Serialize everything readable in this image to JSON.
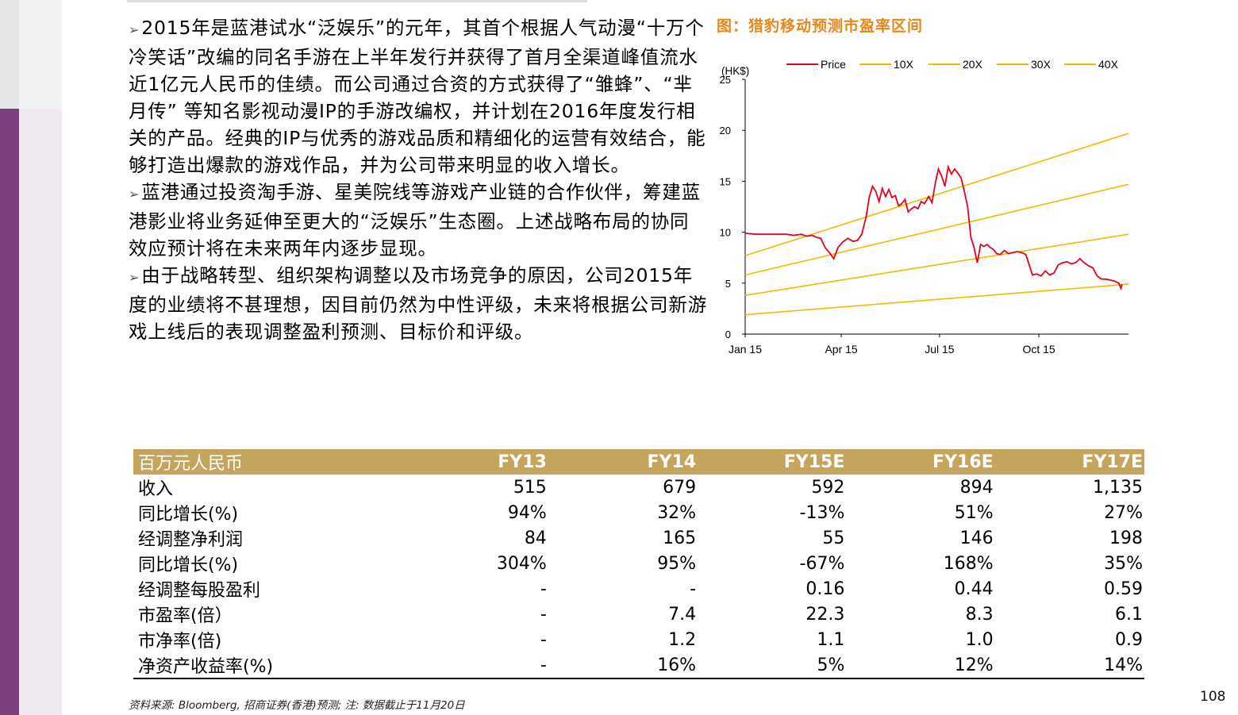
{
  "body": {
    "paragraphs": [
      "2015年是蓝港试水“泛娱乐”的元年，其首个根据人气动漫“十万个冷笑话”改编的同名手游在上半年发行并获得了首月全渠道峰值流水近1亿元人民币的佳绩。而公司通过合资的方式获得了“雏蜂”、“芈月传” 等知名影视动漫IP的手游改编权，并计划在2016年度发行相关的产品。经典的IP与优秀的游戏品质和精细化的运营有效结合，能够打造出爆款的游戏作品，并为公司带来明显的收入增长。",
      "蓝港通过投资淘手游、星美院线等游戏产业链的合作伙伴，筹建蓝港影业将业务延伸至更大的“泛娱乐”生态圈。上述战略布局的协同效应预计将在未来两年内逐步显现。",
      "由于战略转型、组织架构调整以及市场竞争的原因，公司2015年度的业绩将不甚理想，因目前仍然为中性评级，未来将根据公司新游戏上线后的表现调整盈利预测、目标价和评级。"
    ]
  },
  "figure": {
    "title": "图：猎豹移动预测市盈率区间"
  },
  "chart_data": {
    "type": "line",
    "ylabel": "(HK$)",
    "ylim": [
      0,
      25
    ],
    "yticks": [
      0,
      5,
      10,
      15,
      20,
      25
    ],
    "xlim": [
      0,
      355
    ],
    "xticks": [
      {
        "x": 0,
        "label": "Jan 15"
      },
      {
        "x": 89,
        "label": "Apr 15"
      },
      {
        "x": 180,
        "label": "Jul 15"
      },
      {
        "x": 272,
        "label": "Oct 15"
      }
    ],
    "legend_position": "top",
    "series": [
      {
        "name": "Price",
        "color": "#e8001c",
        "points": [
          [
            0,
            9.9
          ],
          [
            10,
            9.8
          ],
          [
            20,
            9.8
          ],
          [
            30,
            9.8
          ],
          [
            38,
            9.8
          ],
          [
            45,
            9.7
          ],
          [
            52,
            9.8
          ],
          [
            57,
            9.6
          ],
          [
            62,
            9.7
          ],
          [
            66,
            9.5
          ],
          [
            70,
            9.4
          ],
          [
            74,
            8.5
          ],
          [
            78,
            8.0
          ],
          [
            82,
            7.4
          ],
          [
            86,
            8.5
          ],
          [
            90,
            9.0
          ],
          [
            95,
            9.4
          ],
          [
            100,
            9.1
          ],
          [
            104,
            9.2
          ],
          [
            108,
            9.8
          ],
          [
            112,
            11.5
          ],
          [
            115,
            13.5
          ],
          [
            118,
            14.5
          ],
          [
            121,
            14.0
          ],
          [
            124,
            13.0
          ],
          [
            127,
            14.3
          ],
          [
            130,
            13.5
          ],
          [
            133,
            14.2
          ],
          [
            136,
            13.4
          ],
          [
            139,
            13.6
          ],
          [
            142,
            12.6
          ],
          [
            145,
            12.8
          ],
          [
            148,
            13.2
          ],
          [
            151,
            12.0
          ],
          [
            154,
            12.3
          ],
          [
            157,
            12.5
          ],
          [
            160,
            12.3
          ],
          [
            163,
            13.0
          ],
          [
            166,
            12.8
          ],
          [
            170,
            13.5
          ],
          [
            173,
            12.9
          ],
          [
            176,
            14.8
          ],
          [
            179,
            16.2
          ],
          [
            182,
            15.5
          ],
          [
            185,
            14.5
          ],
          [
            188,
            16.4
          ],
          [
            191,
            15.7
          ],
          [
            194,
            16.2
          ],
          [
            197,
            15.8
          ],
          [
            200,
            15.3
          ],
          [
            203,
            14.0
          ],
          [
            206,
            12.5
          ],
          [
            209,
            9.5
          ],
          [
            212,
            8.5
          ],
          [
            215,
            7.0
          ],
          [
            218,
            8.8
          ],
          [
            221,
            8.6
          ],
          [
            224,
            8.8
          ],
          [
            227,
            8.5
          ],
          [
            230,
            8.3
          ],
          [
            233,
            7.9
          ],
          [
            236,
            7.8
          ],
          [
            240,
            8.2
          ],
          [
            244,
            7.9
          ],
          [
            248,
            8.0
          ],
          [
            252,
            8.1
          ],
          [
            256,
            8.0
          ],
          [
            260,
            7.8
          ],
          [
            263,
            6.8
          ],
          [
            266,
            5.8
          ],
          [
            270,
            5.9
          ],
          [
            274,
            5.7
          ],
          [
            278,
            6.2
          ],
          [
            282,
            5.8
          ],
          [
            286,
            6.0
          ],
          [
            290,
            6.8
          ],
          [
            294,
            7.0
          ],
          [
            298,
            7.1
          ],
          [
            302,
            6.9
          ],
          [
            306,
            7.0
          ],
          [
            310,
            7.4
          ],
          [
            314,
            7.0
          ],
          [
            318,
            6.7
          ],
          [
            322,
            6.5
          ],
          [
            326,
            5.7
          ],
          [
            330,
            5.4
          ],
          [
            334,
            5.4
          ],
          [
            338,
            5.3
          ],
          [
            342,
            5.2
          ],
          [
            346,
            5.0
          ],
          [
            348,
            4.5
          ],
          [
            349,
            4.9
          ]
        ]
      },
      {
        "name": "10X",
        "color": "#f5b800",
        "points": [
          [
            0,
            1.9
          ],
          [
            355,
            4.9
          ]
        ]
      },
      {
        "name": "20X",
        "color": "#f5b800",
        "points": [
          [
            0,
            3.8
          ],
          [
            355,
            9.8
          ]
        ]
      },
      {
        "name": "30X",
        "color": "#f5b800",
        "points": [
          [
            0,
            5.8
          ],
          [
            355,
            14.7
          ]
        ]
      },
      {
        "name": "40X",
        "color": "#f5b800",
        "points": [
          [
            0,
            7.7
          ],
          [
            355,
            19.7
          ]
        ]
      }
    ]
  },
  "table": {
    "headers": [
      "百万元人民币",
      "FY13",
      "FY14",
      "FY15E",
      "FY16E",
      "FY17E"
    ],
    "rows": [
      [
        "收入",
        "515",
        "679",
        "592",
        "894",
        "1,135"
      ],
      [
        "同比增长(%)",
        "94%",
        "32%",
        "-13%",
        "51%",
        "27%"
      ],
      [
        "经调整净利润",
        "84",
        "165",
        "55",
        "146",
        "198"
      ],
      [
        "同比增长(%)",
        "304%",
        "95%",
        "-67%",
        "168%",
        "35%"
      ],
      [
        "经调整每股盈利",
        "-",
        "-",
        "0.16",
        "0.44",
        "0.59"
      ],
      [
        "市盈率(倍）",
        "-",
        "7.4",
        "22.3",
        "8.3",
        "6.1"
      ],
      [
        "市净率(倍)",
        "-",
        "1.2",
        "1.1",
        "1.0",
        "0.9"
      ],
      [
        "净资产收益率(%)",
        "-",
        "16%",
        "5%",
        "12%",
        "14%"
      ]
    ]
  },
  "footer": {
    "source": "资料来源: Bloomberg, 招商证券(香港)预测; 注: 数据截止于11月20日",
    "page_number": "108"
  }
}
